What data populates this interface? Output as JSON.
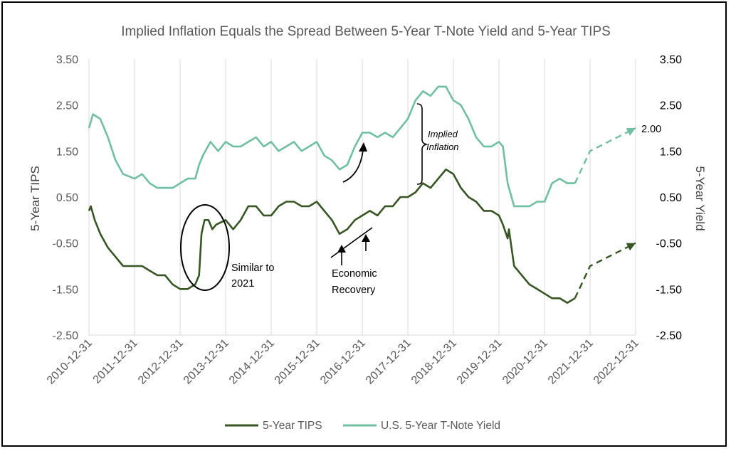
{
  "chart_data": {
    "type": "line",
    "title": "Implied Inflation Equals the Spread Between 5-Year T-Note Yield and 5-Year TIPS",
    "ylabel_left": "5-Year TIPS",
    "ylabel_right": "5-Year Yield",
    "ylim": [
      -2.5,
      3.5
    ],
    "y_ticks": [
      "3.50",
      "2.50",
      "1.50",
      "0.50",
      "-0.50",
      "-1.50",
      "-2.50"
    ],
    "x_ticks": [
      "2010-12-31",
      "2011-12-31",
      "2012-12-31",
      "2013-12-31",
      "2014-12-31",
      "2015-12-31",
      "2016-12-31",
      "2017-12-31",
      "2018-12-31",
      "2019-12-31",
      "2020-12-31",
      "2021-12-31",
      "2022-12-31"
    ],
    "grid": "vertical",
    "legend_position": "bottom",
    "series": [
      {
        "name": "5-Year TIPS",
        "color": "#375623",
        "x": [
          "2010-12-31",
          "2011-01-15",
          "2011-02-15",
          "2011-04-01",
          "2011-06-01",
          "2011-08-01",
          "2011-10-01",
          "2011-12-31",
          "2012-03-01",
          "2012-05-01",
          "2012-07-01",
          "2012-09-01",
          "2012-11-01",
          "2012-12-31",
          "2013-03-01",
          "2013-05-01",
          "2013-06-01",
          "2013-06-20",
          "2013-07-15",
          "2013-08-15",
          "2013-09-15",
          "2013-10-15",
          "2013-12-31",
          "2014-03-01",
          "2014-05-01",
          "2014-07-01",
          "2014-09-01",
          "2014-11-01",
          "2014-12-31",
          "2015-03-01",
          "2015-05-01",
          "2015-07-01",
          "2015-09-01",
          "2015-11-01",
          "2015-12-31",
          "2016-03-01",
          "2016-05-01",
          "2016-07-01",
          "2016-09-01",
          "2016-11-01",
          "2016-12-31",
          "2017-03-01",
          "2017-05-01",
          "2017-07-01",
          "2017-09-01",
          "2017-11-01",
          "2017-12-31",
          "2018-03-01",
          "2018-05-01",
          "2018-07-01",
          "2018-09-01",
          "2018-11-01",
          "2018-12-31",
          "2019-03-01",
          "2019-05-01",
          "2019-07-01",
          "2019-09-01",
          "2019-11-01",
          "2019-12-31",
          "2020-02-01",
          "2020-03-10",
          "2020-03-20",
          "2020-05-01",
          "2020-07-01",
          "2020-09-01",
          "2020-11-01",
          "2020-12-31",
          "2021-03-01",
          "2021-05-01",
          "2021-07-01",
          "2021-09-01"
        ],
        "values": [
          0.2,
          0.3,
          0.0,
          -0.3,
          -0.6,
          -0.8,
          -1.0,
          -1.0,
          -1.0,
          -1.1,
          -1.2,
          -1.2,
          -1.4,
          -1.5,
          -1.5,
          -1.4,
          -1.2,
          -0.3,
          0.0,
          0.0,
          -0.2,
          -0.1,
          0.0,
          -0.2,
          0.0,
          0.3,
          0.3,
          0.1,
          0.1,
          0.3,
          0.4,
          0.4,
          0.3,
          0.3,
          0.4,
          0.2,
          0.0,
          -0.3,
          -0.2,
          0.0,
          0.1,
          0.2,
          0.1,
          0.3,
          0.3,
          0.5,
          0.5,
          0.6,
          0.8,
          0.7,
          0.9,
          1.1,
          1.0,
          0.7,
          0.5,
          0.4,
          0.2,
          0.2,
          0.1,
          -0.1,
          -0.4,
          -0.2,
          -1.0,
          -1.2,
          -1.4,
          -1.5,
          -1.6,
          -1.7,
          -1.7,
          -1.8,
          -1.7
        ],
        "projection": {
          "x": [
            "2021-09-01",
            "2021-12-31",
            "2022-12-31"
          ],
          "values": [
            -1.7,
            -1.0,
            -0.5
          ]
        }
      },
      {
        "name": "U.S. 5-Year T-Note Yield",
        "color": "#70BFA1",
        "x": [
          "2010-12-31",
          "2011-02-01",
          "2011-04-01",
          "2011-06-01",
          "2011-08-01",
          "2011-10-01",
          "2011-12-31",
          "2012-03-01",
          "2012-05-01",
          "2012-07-01",
          "2012-09-01",
          "2012-11-01",
          "2012-12-31",
          "2013-03-01",
          "2013-05-01",
          "2013-06-01",
          "2013-07-01",
          "2013-09-01",
          "2013-11-01",
          "2013-12-31",
          "2014-03-01",
          "2014-05-01",
          "2014-07-01",
          "2014-09-01",
          "2014-11-01",
          "2014-12-31",
          "2015-03-01",
          "2015-05-01",
          "2015-07-01",
          "2015-09-01",
          "2015-11-01",
          "2015-12-31",
          "2016-03-01",
          "2016-05-01",
          "2016-07-01",
          "2016-09-01",
          "2016-11-01",
          "2016-12-31",
          "2017-03-01",
          "2017-05-01",
          "2017-07-01",
          "2017-09-01",
          "2017-11-01",
          "2017-12-31",
          "2018-03-01",
          "2018-05-01",
          "2018-07-01",
          "2018-09-01",
          "2018-11-01",
          "2018-12-31",
          "2019-03-01",
          "2019-05-01",
          "2019-07-01",
          "2019-09-01",
          "2019-11-01",
          "2019-12-31",
          "2020-02-01",
          "2020-03-10",
          "2020-05-01",
          "2020-07-01",
          "2020-09-01",
          "2020-11-01",
          "2020-12-31",
          "2021-03-01",
          "2021-05-01",
          "2021-07-01",
          "2021-09-01"
        ],
        "values": [
          2.0,
          2.3,
          2.2,
          1.8,
          1.3,
          1.0,
          0.9,
          1.0,
          0.8,
          0.7,
          0.7,
          0.7,
          0.8,
          0.9,
          0.9,
          1.2,
          1.4,
          1.7,
          1.5,
          1.7,
          1.6,
          1.6,
          1.7,
          1.8,
          1.6,
          1.7,
          1.5,
          1.6,
          1.7,
          1.5,
          1.6,
          1.7,
          1.4,
          1.3,
          1.1,
          1.2,
          1.6,
          1.9,
          1.9,
          1.8,
          1.9,
          1.8,
          2.0,
          2.2,
          2.6,
          2.8,
          2.7,
          2.9,
          2.9,
          2.6,
          2.5,
          2.2,
          1.8,
          1.6,
          1.6,
          1.7,
          1.6,
          0.8,
          0.3,
          0.3,
          0.3,
          0.4,
          0.4,
          0.8,
          0.9,
          0.8,
          0.8
        ],
        "projection": {
          "x": [
            "2021-09-01",
            "2021-12-31",
            "2022-12-31"
          ],
          "values": [
            0.8,
            1.5,
            2.0
          ]
        }
      }
    ],
    "annotations": {
      "similar": [
        "Similar to",
        "2021"
      ],
      "recovery": [
        "Economic",
        "Recovery"
      ],
      "implied": [
        "Implied",
        "Inflation"
      ],
      "end_label": "2.00"
    }
  }
}
